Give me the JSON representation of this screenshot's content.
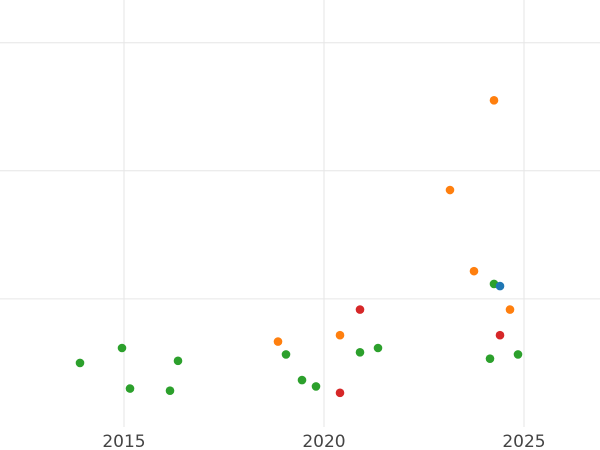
{
  "chart_data": {
    "type": "scatter",
    "title": "",
    "xlabel": "",
    "ylabel": "",
    "xlim": [
      2011.9,
      2026.9
    ],
    "ylim": [
      0,
      100
    ],
    "xticks": [
      2015,
      2020,
      2025
    ],
    "xtick_labels": [
      "2015",
      "2020",
      "2025"
    ],
    "ygrid": [
      30,
      60,
      90
    ],
    "grid": true,
    "colors": {
      "green": "#2ca02c",
      "orange": "#ff7f0e",
      "red": "#d62728",
      "blue": "#1f77b4"
    },
    "series": [
      {
        "color": "green",
        "points": [
          {
            "x": 2013.9,
            "y": 15
          },
          {
            "x": 2014.95,
            "y": 18.5
          },
          {
            "x": 2015.15,
            "y": 9
          },
          {
            "x": 2016.15,
            "y": 8.5
          },
          {
            "x": 2016.35,
            "y": 15.5
          },
          {
            "x": 2019.05,
            "y": 17
          },
          {
            "x": 2019.45,
            "y": 11
          },
          {
            "x": 2019.8,
            "y": 9.5
          },
          {
            "x": 2020.9,
            "y": 17.5
          },
          {
            "x": 2021.35,
            "y": 18.5
          },
          {
            "x": 2024.15,
            "y": 16
          },
          {
            "x": 2024.25,
            "y": 33.5
          },
          {
            "x": 2024.85,
            "y": 17
          }
        ]
      },
      {
        "color": "orange",
        "points": [
          {
            "x": 2018.85,
            "y": 20
          },
          {
            "x": 2020.4,
            "y": 21.5
          },
          {
            "x": 2023.15,
            "y": 55.5
          },
          {
            "x": 2023.75,
            "y": 36.5
          },
          {
            "x": 2024.25,
            "y": 76.5
          },
          {
            "x": 2024.65,
            "y": 27.5
          }
        ]
      },
      {
        "color": "red",
        "points": [
          {
            "x": 2020.4,
            "y": 8
          },
          {
            "x": 2020.9,
            "y": 27.5
          },
          {
            "x": 2024.4,
            "y": 21.5
          }
        ]
      },
      {
        "color": "blue",
        "points": [
          {
            "x": 2024.4,
            "y": 33
          }
        ]
      }
    ]
  }
}
